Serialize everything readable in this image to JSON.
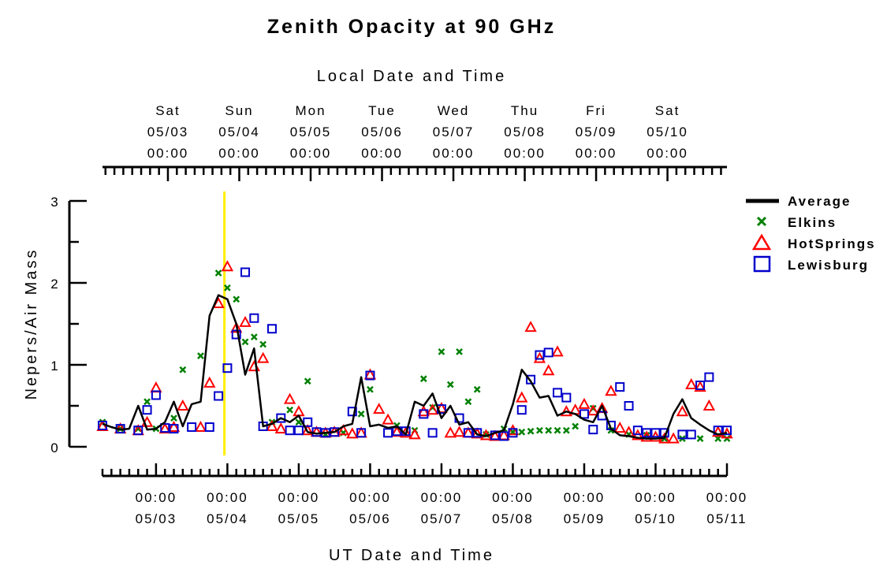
{
  "chart_data": {
    "type": "scatter",
    "title": "Zenith Opacity at 90 GHz",
    "ylabel": "Nepers/Air Mass",
    "ylim": [
      0,
      3
    ],
    "y_ticks": [
      "0",
      "1",
      "2",
      "3"
    ],
    "x_axis_bottom": {
      "label": "UT Date and Time",
      "range": [
        "2008-05-02T06:00",
        "2008-05-11T00:00"
      ],
      "ticks": [
        {
          "time": "00:00",
          "date": "05/03"
        },
        {
          "time": "00:00",
          "date": "05/04"
        },
        {
          "time": "00:00",
          "date": "05/05"
        },
        {
          "time": "00:00",
          "date": "05/06"
        },
        {
          "time": "00:00",
          "date": "05/07"
        },
        {
          "time": "00:00",
          "date": "05/08"
        },
        {
          "time": "00:00",
          "date": "05/09"
        },
        {
          "time": "00:00",
          "date": "05/10"
        },
        {
          "time": "00:00",
          "date": "05/11"
        }
      ]
    },
    "x_axis_top": {
      "label": "Local Date and Time",
      "ticks": [
        {
          "day": "Sat",
          "date": "05/03",
          "time": "00:00"
        },
        {
          "day": "Sun",
          "date": "05/04",
          "time": "00:00"
        },
        {
          "day": "Mon",
          "date": "05/05",
          "time": "00:00"
        },
        {
          "day": "Tue",
          "date": "05/06",
          "time": "00:00"
        },
        {
          "day": "Wed",
          "date": "05/07",
          "time": "00:00"
        },
        {
          "day": "Thu",
          "date": "05/08",
          "time": "00:00"
        },
        {
          "day": "Fri",
          "date": "05/09",
          "time": "00:00"
        },
        {
          "day": "Sat",
          "date": "05/10",
          "time": "00:00"
        }
      ]
    },
    "marker_line": {
      "time": "2008-05-03T23:00",
      "color": "#ffee00"
    },
    "series": [
      {
        "name": "Average",
        "style": "line",
        "color": "#000000",
        "x": [
          "2008-05-02T06:00",
          "2008-05-02T09:00",
          "2008-05-02T12:00",
          "2008-05-02T15:00",
          "2008-05-02T18:00",
          "2008-05-02T21:00",
          "2008-05-03T00:00",
          "2008-05-03T03:00",
          "2008-05-03T06:00",
          "2008-05-03T09:00",
          "2008-05-03T12:00",
          "2008-05-03T15:00",
          "2008-05-03T18:00",
          "2008-05-03T21:00",
          "2008-05-04T00:00",
          "2008-05-04T03:00",
          "2008-05-04T06:00",
          "2008-05-04T09:00",
          "2008-05-04T12:00",
          "2008-05-04T15:00",
          "2008-05-04T18:00",
          "2008-05-04T21:00",
          "2008-05-05T00:00",
          "2008-05-05T03:00",
          "2008-05-05T06:00",
          "2008-05-05T09:00",
          "2008-05-05T12:00",
          "2008-05-05T15:00",
          "2008-05-05T18:00",
          "2008-05-05T21:00",
          "2008-05-06T00:00",
          "2008-05-06T03:00",
          "2008-05-06T06:00",
          "2008-05-06T09:00",
          "2008-05-06T12:00",
          "2008-05-06T15:00",
          "2008-05-06T18:00",
          "2008-05-06T21:00",
          "2008-05-07T00:00",
          "2008-05-07T03:00",
          "2008-05-07T06:00",
          "2008-05-07T09:00",
          "2008-05-07T12:00",
          "2008-05-07T15:00",
          "2008-05-07T18:00",
          "2008-05-07T21:00",
          "2008-05-08T00:00",
          "2008-05-08T03:00",
          "2008-05-08T06:00",
          "2008-05-08T09:00",
          "2008-05-08T12:00",
          "2008-05-08T15:00",
          "2008-05-08T18:00",
          "2008-05-08T21:00",
          "2008-05-09T00:00",
          "2008-05-09T03:00",
          "2008-05-09T06:00",
          "2008-05-09T09:00",
          "2008-05-09T12:00",
          "2008-05-09T15:00",
          "2008-05-09T18:00",
          "2008-05-09T21:00",
          "2008-05-10T00:00",
          "2008-05-10T03:00",
          "2008-05-10T06:00",
          "2008-05-10T09:00",
          "2008-05-10T12:00",
          "2008-05-10T15:00",
          "2008-05-10T18:00",
          "2008-05-10T21:00",
          "2008-05-11T00:00"
        ],
        "y": [
          0.28,
          0.24,
          0.21,
          0.22,
          0.5,
          0.21,
          0.22,
          0.3,
          0.55,
          0.25,
          0.52,
          0.55,
          1.6,
          1.85,
          1.8,
          1.5,
          0.88,
          1.2,
          0.25,
          0.28,
          0.35,
          0.3,
          0.38,
          0.18,
          0.16,
          0.17,
          0.18,
          0.25,
          0.28,
          0.85,
          0.25,
          0.27,
          0.23,
          0.25,
          0.15,
          0.55,
          0.5,
          0.65,
          0.35,
          0.5,
          0.27,
          0.3,
          0.15,
          0.13,
          0.17,
          0.2,
          0.52,
          0.94,
          0.8,
          0.6,
          0.62,
          0.38,
          0.43,
          0.4,
          0.33,
          0.3,
          0.5,
          0.22,
          0.14,
          0.13,
          0.11,
          0.1,
          0.1,
          0.11,
          0.4,
          0.58,
          0.35,
          0.27,
          0.2,
          0.15,
          0.17
        ]
      },
      {
        "name": "Elkins",
        "style": "x",
        "color": "#008000",
        "x": [
          "2008-05-02T06:00",
          "2008-05-02T12:00",
          "2008-05-02T18:00",
          "2008-05-02T21:00",
          "2008-05-03T00:00",
          "2008-05-03T06:00",
          "2008-05-03T09:00",
          "2008-05-03T15:00",
          "2008-05-03T21:00",
          "2008-05-04T00:00",
          "2008-05-04T03:00",
          "2008-05-04T06:00",
          "2008-05-04T09:00",
          "2008-05-04T12:00",
          "2008-05-04T15:00",
          "2008-05-04T21:00",
          "2008-05-05T00:00",
          "2008-05-05T03:00",
          "2008-05-05T09:00",
          "2008-05-05T15:00",
          "2008-05-05T21:00",
          "2008-05-06T00:00",
          "2008-05-06T09:00",
          "2008-05-06T15:00",
          "2008-05-06T18:00",
          "2008-05-06T21:00",
          "2008-05-07T00:00",
          "2008-05-07T03:00",
          "2008-05-07T06:00",
          "2008-05-07T09:00",
          "2008-05-07T12:00",
          "2008-05-07T15:00",
          "2008-05-07T21:00",
          "2008-05-08T00:00",
          "2008-05-08T03:00",
          "2008-05-08T06:00",
          "2008-05-08T09:00",
          "2008-05-08T12:00",
          "2008-05-08T15:00",
          "2008-05-08T18:00",
          "2008-05-08T21:00",
          "2008-05-09T03:00",
          "2008-05-09T09:00",
          "2008-05-09T15:00",
          "2008-05-09T21:00",
          "2008-05-10T03:00",
          "2008-05-10T09:00",
          "2008-05-10T15:00",
          "2008-05-10T21:00",
          "2008-05-11T00:00"
        ],
        "y": [
          0.3,
          0.22,
          0.22,
          0.55,
          0.22,
          0.35,
          0.94,
          1.11,
          2.12,
          1.94,
          1.8,
          1.28,
          1.34,
          1.25,
          0.3,
          0.45,
          0.3,
          0.8,
          0.15,
          0.17,
          0.4,
          0.7,
          0.26,
          0.2,
          0.83,
          0.48,
          1.16,
          0.76,
          1.16,
          0.55,
          0.7,
          0.15,
          0.22,
          0.18,
          0.18,
          0.19,
          0.2,
          0.2,
          0.2,
          0.2,
          0.25,
          0.47,
          0.2,
          0.15,
          0.14,
          0.1,
          0.1,
          0.1,
          0.1,
          0.1
        ]
      },
      {
        "name": "HotSprings",
        "style": "triangle",
        "color": "#ff0000",
        "x": [
          "2008-05-02T06:00",
          "2008-05-02T12:00",
          "2008-05-02T18:00",
          "2008-05-02T21:00",
          "2008-05-03T00:00",
          "2008-05-03T03:00",
          "2008-05-03T06:00",
          "2008-05-03T09:00",
          "2008-05-03T15:00",
          "2008-05-03T18:00",
          "2008-05-03T21:00",
          "2008-05-04T00:00",
          "2008-05-04T03:00",
          "2008-05-04T06:00",
          "2008-05-04T09:00",
          "2008-05-04T12:00",
          "2008-05-04T15:00",
          "2008-05-04T18:00",
          "2008-05-04T21:00",
          "2008-05-05T00:00",
          "2008-05-05T03:00",
          "2008-05-05T06:00",
          "2008-05-05T09:00",
          "2008-05-05T12:00",
          "2008-05-05T15:00",
          "2008-05-05T18:00",
          "2008-05-05T21:00",
          "2008-05-06T00:00",
          "2008-05-06T03:00",
          "2008-05-06T06:00",
          "2008-05-06T09:00",
          "2008-05-06T12:00",
          "2008-05-06T15:00",
          "2008-05-06T18:00",
          "2008-05-06T21:00",
          "2008-05-07T00:00",
          "2008-05-07T03:00",
          "2008-05-07T06:00",
          "2008-05-07T09:00",
          "2008-05-07T12:00",
          "2008-05-07T15:00",
          "2008-05-07T18:00",
          "2008-05-07T21:00",
          "2008-05-08T00:00",
          "2008-05-08T03:00",
          "2008-05-08T06:00",
          "2008-05-08T09:00",
          "2008-05-08T12:00",
          "2008-05-08T15:00",
          "2008-05-08T18:00",
          "2008-05-08T21:00",
          "2008-05-09T00:00",
          "2008-05-09T03:00",
          "2008-05-09T06:00",
          "2008-05-09T09:00",
          "2008-05-09T12:00",
          "2008-05-09T15:00",
          "2008-05-09T18:00",
          "2008-05-09T21:00",
          "2008-05-10T00:00",
          "2008-05-10T03:00",
          "2008-05-10T06:00",
          "2008-05-10T09:00",
          "2008-05-10T12:00",
          "2008-05-10T15:00",
          "2008-05-10T18:00",
          "2008-05-10T21:00",
          "2008-05-11T00:00"
        ],
        "y": [
          0.25,
          0.22,
          0.2,
          0.3,
          0.72,
          0.22,
          0.24,
          0.5,
          0.24,
          0.78,
          1.75,
          2.2,
          1.45,
          1.52,
          0.98,
          1.08,
          0.25,
          0.22,
          0.58,
          0.43,
          0.2,
          0.18,
          0.17,
          0.18,
          0.2,
          0.16,
          0.17,
          0.88,
          0.46,
          0.33,
          0.18,
          0.17,
          0.15,
          0.43,
          0.45,
          0.47,
          0.17,
          0.18,
          0.17,
          0.16,
          0.14,
          0.13,
          0.14,
          0.2,
          0.6,
          1.46,
          1.08,
          0.93,
          1.16,
          0.43,
          0.45,
          0.52,
          0.44,
          0.47,
          0.68,
          0.23,
          0.18,
          0.14,
          0.12,
          0.12,
          0.1,
          0.1,
          0.43,
          0.76,
          0.73,
          0.5,
          0.18,
          0.16
        ]
      },
      {
        "name": "Lewisburg",
        "style": "square",
        "color": "#0000cc",
        "x": [
          "2008-05-02T06:00",
          "2008-05-02T12:00",
          "2008-05-02T18:00",
          "2008-05-02T21:00",
          "2008-05-03T00:00",
          "2008-05-03T03:00",
          "2008-05-03T06:00",
          "2008-05-03T12:00",
          "2008-05-03T18:00",
          "2008-05-03T21:00",
          "2008-05-04T00:00",
          "2008-05-04T03:00",
          "2008-05-04T06:00",
          "2008-05-04T09:00",
          "2008-05-04T12:00",
          "2008-05-04T15:00",
          "2008-05-04T18:00",
          "2008-05-04T21:00",
          "2008-05-05T00:00",
          "2008-05-05T03:00",
          "2008-05-05T06:00",
          "2008-05-05T09:00",
          "2008-05-05T12:00",
          "2008-05-05T18:00",
          "2008-05-05T21:00",
          "2008-05-06T00:00",
          "2008-05-06T06:00",
          "2008-05-06T09:00",
          "2008-05-06T12:00",
          "2008-05-06T18:00",
          "2008-05-06T21:00",
          "2008-05-07T00:00",
          "2008-05-07T06:00",
          "2008-05-07T09:00",
          "2008-05-07T12:00",
          "2008-05-07T18:00",
          "2008-05-07T21:00",
          "2008-05-08T00:00",
          "2008-05-08T03:00",
          "2008-05-08T06:00",
          "2008-05-08T09:00",
          "2008-05-08T12:00",
          "2008-05-08T15:00",
          "2008-05-08T18:00",
          "2008-05-09T00:00",
          "2008-05-09T03:00",
          "2008-05-09T06:00",
          "2008-05-09T09:00",
          "2008-05-09T12:00",
          "2008-05-09T15:00",
          "2008-05-09T18:00",
          "2008-05-09T21:00",
          "2008-05-10T00:00",
          "2008-05-10T03:00",
          "2008-05-10T09:00",
          "2008-05-10T12:00",
          "2008-05-10T15:00",
          "2008-05-10T18:00",
          "2008-05-10T21:00",
          "2008-05-11T00:00"
        ],
        "y": [
          0.26,
          0.22,
          0.2,
          0.45,
          0.63,
          0.23,
          0.22,
          0.24,
          0.24,
          0.62,
          0.96,
          1.37,
          2.13,
          1.57,
          0.25,
          1.44,
          0.35,
          0.2,
          0.2,
          0.3,
          0.18,
          0.17,
          0.18,
          0.43,
          0.17,
          0.87,
          0.17,
          0.19,
          0.19,
          0.4,
          0.17,
          0.46,
          0.35,
          0.17,
          0.17,
          0.14,
          0.13,
          0.17,
          0.45,
          0.82,
          1.12,
          1.15,
          0.66,
          0.6,
          0.4,
          0.21,
          0.38,
          0.26,
          0.73,
          0.5,
          0.2,
          0.17,
          0.17,
          0.17,
          0.15,
          0.15,
          0.75,
          0.85,
          0.2,
          0.2
        ]
      }
    ]
  }
}
